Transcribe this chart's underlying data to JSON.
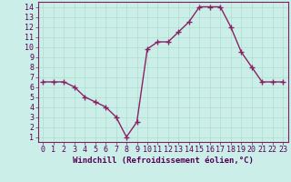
{
  "x": [
    0,
    1,
    2,
    3,
    4,
    5,
    6,
    7,
    8,
    9,
    10,
    11,
    12,
    13,
    14,
    15,
    16,
    17,
    18,
    19,
    20,
    21,
    22,
    23
  ],
  "y": [
    6.5,
    6.5,
    6.5,
    6.0,
    5.0,
    4.5,
    4.0,
    3.0,
    1.0,
    2.5,
    9.8,
    10.5,
    10.5,
    11.5,
    12.5,
    14.0,
    14.0,
    14.0,
    12.0,
    9.5,
    8.0,
    6.5,
    6.5,
    6.5
  ],
  "line_color": "#882266",
  "marker": "+",
  "marker_size": 4,
  "marker_color": "#882266",
  "background_color": "#cceee8",
  "grid_color": "#aaddcc",
  "xlabel": "Windchill (Refroidissement éolien,°C)",
  "xlim": [
    -0.5,
    23.5
  ],
  "ylim": [
    0.5,
    14.5
  ],
  "xticks": [
    0,
    1,
    2,
    3,
    4,
    5,
    6,
    7,
    8,
    9,
    10,
    11,
    12,
    13,
    14,
    15,
    16,
    17,
    18,
    19,
    20,
    21,
    22,
    23
  ],
  "yticks": [
    1,
    2,
    3,
    4,
    5,
    6,
    7,
    8,
    9,
    10,
    11,
    12,
    13,
    14
  ],
  "xlabel_fontsize": 6.5,
  "tick_fontsize": 6.0,
  "line_width": 1.0,
  "line_color_hex": "#7a2060",
  "spine_color": "#7a2060",
  "text_color": "#550055"
}
